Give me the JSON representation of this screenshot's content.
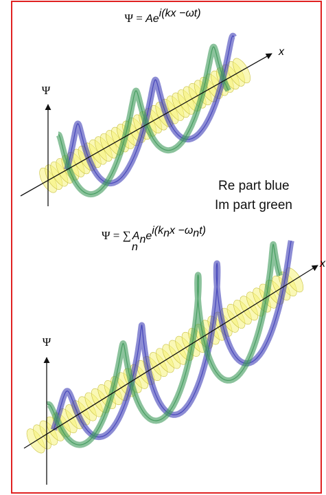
{
  "panels": [
    {
      "formula": {
        "lhs": "Ψ = ",
        "base": "Ae",
        "exponent": "i(kx −ωt)"
      },
      "y_axis_label": "Ψ",
      "x_axis_label": "x"
    },
    {
      "formula": {
        "lhs": "Ψ = ",
        "sum": "∑",
        "sum_index": "n",
        "amp": "A",
        "amp_index": "n",
        "base": "e",
        "exp_a": "i(k",
        "exp_a_index": "n",
        "exp_b": "x −ω",
        "exp_b_index": "n",
        "exp_c": "t)"
      },
      "y_axis_label": "Ψ",
      "x_axis_label": "x"
    }
  ],
  "legend": [
    "Re part blue",
    "Im part green"
  ]
}
